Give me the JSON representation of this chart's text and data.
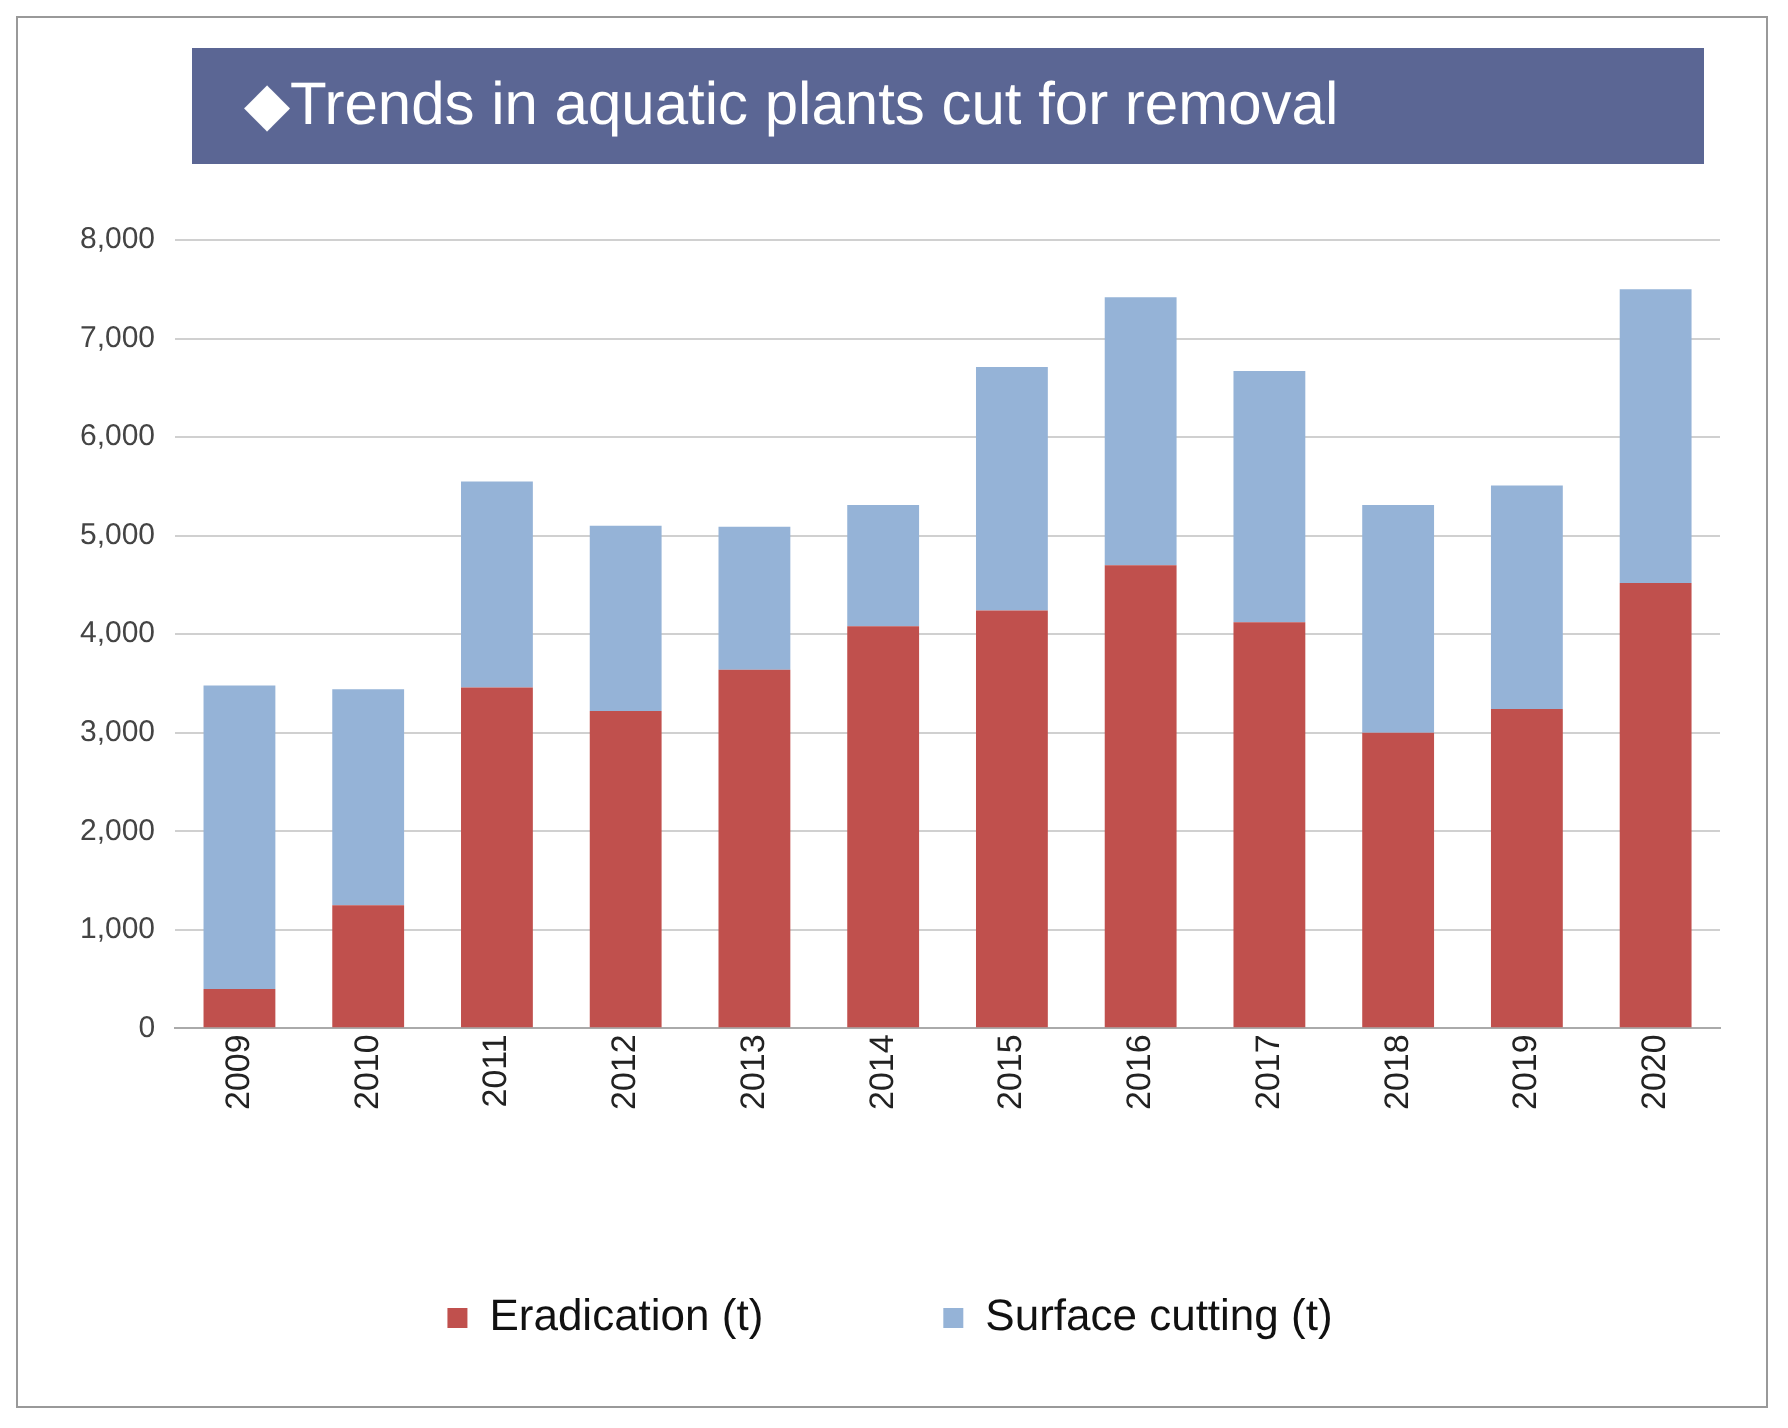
{
  "chart_data": {
    "type": "bar",
    "title": "◆Trends in aquatic plants cut for removal",
    "stacked": true,
    "categories": [
      "2009",
      "2010",
      "2011",
      "2012",
      "2013",
      "2014",
      "2015",
      "2016",
      "2017",
      "2018",
      "2019",
      "2020"
    ],
    "series": [
      {
        "name": "Eradication (t)",
        "color": "#c0504d",
        "values": [
          400,
          1250,
          3460,
          3220,
          3640,
          4080,
          4240,
          4700,
          4120,
          3000,
          3240,
          4520
        ]
      },
      {
        "name": "Surface cutting (t)",
        "color": "#95b3d7",
        "values": [
          3080,
          2190,
          2090,
          1880,
          1450,
          1230,
          2470,
          2720,
          2550,
          2310,
          2270,
          2980
        ]
      }
    ],
    "ylim": [
      0,
      8000
    ],
    "yticks": [
      {
        "value": 0,
        "label": "0"
      },
      {
        "value": 1000,
        "label": "1,000"
      },
      {
        "value": 2000,
        "label": "2,000"
      },
      {
        "value": 3000,
        "label": "3,000"
      },
      {
        "value": 4000,
        "label": "4,000"
      },
      {
        "value": 5000,
        "label": "5,000"
      },
      {
        "value": 6000,
        "label": "6,000"
      },
      {
        "value": 7000,
        "label": "7,000"
      },
      {
        "value": 8000,
        "label": "8,000"
      }
    ],
    "grid": "y",
    "legend": "bottom"
  }
}
